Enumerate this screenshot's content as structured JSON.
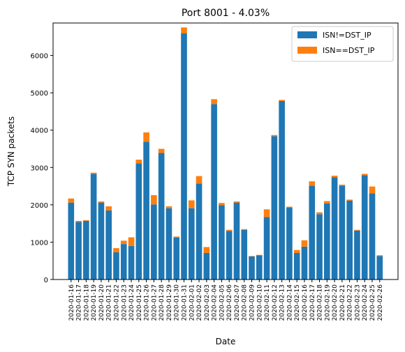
{
  "chart_data": {
    "type": "bar",
    "title": "Port 8001 - 4.03%",
    "xlabel": "Date",
    "ylabel": "TCP SYN packets",
    "ylim": [
      0,
      6870
    ],
    "yticks": [
      0,
      1000,
      2000,
      3000,
      4000,
      5000,
      6000
    ],
    "stacked": true,
    "grid": false,
    "legend_position": "top-right",
    "categories": [
      "2020-01-16",
      "2020-01-17",
      "2020-01-18",
      "2020-01-19",
      "2020-01-20",
      "2020-01-21",
      "2020-01-22",
      "2020-01-23",
      "2020-01-24",
      "2020-01-25",
      "2020-01-26",
      "2020-01-27",
      "2020-01-28",
      "2020-01-29",
      "2020-01-30",
      "2020-01-31",
      "2020-02-01",
      "2020-02-02",
      "2020-02-03",
      "2020-02-04",
      "2020-02-05",
      "2020-02-06",
      "2020-02-07",
      "2020-02-08",
      "2020-02-09",
      "2020-02-10",
      "2020-02-11",
      "2020-02-12",
      "2020-02-13",
      "2020-02-14",
      "2020-02-15",
      "2020-02-16",
      "2020-02-17",
      "2020-02-18",
      "2020-02-19",
      "2020-02-20",
      "2020-02-21",
      "2020-02-22",
      "2020-02-23",
      "2020-02-24",
      "2020-02-25",
      "2020-02-26"
    ],
    "series": [
      {
        "name": "ISN!=DST_IP",
        "color": "#1f77b4",
        "values": [
          2060,
          1540,
          1570,
          2830,
          2060,
          1850,
          730,
          950,
          900,
          3110,
          3690,
          2010,
          3390,
          1910,
          1120,
          6590,
          1910,
          2570,
          710,
          4700,
          1990,
          1300,
          2060,
          1330,
          620,
          650,
          1670,
          3840,
          4780,
          1930,
          710,
          880,
          2510,
          1750,
          2040,
          2740,
          2510,
          2110,
          1310,
          2790,
          2310,
          630
        ]
      },
      {
        "name": "ISN==DST_IP",
        "color": "#ff7f0e",
        "values": [
          110,
          30,
          20,
          30,
          30,
          110,
          110,
          90,
          230,
          100,
          250,
          250,
          110,
          50,
          30,
          160,
          210,
          200,
          160,
          130,
          60,
          30,
          30,
          20,
          10,
          10,
          210,
          30,
          30,
          20,
          80,
          170,
          120,
          50,
          60,
          40,
          30,
          30,
          20,
          40,
          180,
          20
        ]
      }
    ]
  }
}
